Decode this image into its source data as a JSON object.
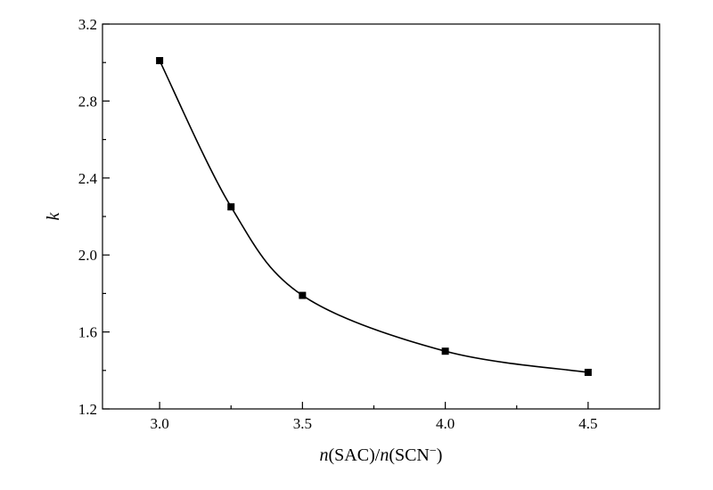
{
  "chart_data": {
    "type": "scatter",
    "title": "",
    "xlabel": {
      "parts": [
        {
          "text": "n",
          "italic": true
        },
        {
          "text": "(SAC)/",
          "italic": false
        },
        {
          "text": "n",
          "italic": true
        },
        {
          "text": "(SCN",
          "italic": false
        },
        {
          "text": "−",
          "italic": false,
          "sup": true
        },
        {
          "text": ")",
          "italic": false
        }
      ]
    },
    "ylabel": "k",
    "ylabel_italic": true,
    "xlim": [
      2.8,
      4.75
    ],
    "ylim": [
      1.2,
      3.2
    ],
    "xticks": [
      3.0,
      3.5,
      4.0,
      4.5
    ],
    "xticks_minor": [
      3.25,
      3.75,
      4.25
    ],
    "yticks": [
      1.2,
      1.6,
      2.0,
      2.4,
      2.8,
      3.2
    ],
    "yticks_minor": [
      1.4,
      1.8,
      2.2,
      2.6,
      3.0
    ],
    "xtick_labels": [
      "3.0",
      "3.5",
      "4.0",
      "4.5"
    ],
    "ytick_labels": [
      "1.2",
      "1.6",
      "2.0",
      "2.4",
      "2.8",
      "3.2"
    ],
    "grid": false,
    "legend": "none",
    "series": [
      {
        "marker": "square",
        "smooth_line": true,
        "color": "#000000",
        "x": [
          3.0,
          3.25,
          3.5,
          4.0,
          4.5
        ],
        "y": [
          3.01,
          2.25,
          1.79,
          1.5,
          1.39
        ]
      }
    ]
  }
}
